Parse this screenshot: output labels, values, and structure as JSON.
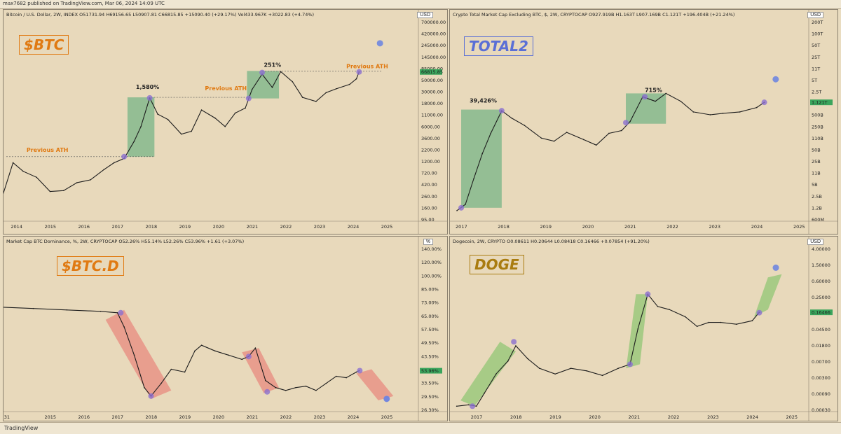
{
  "header": {
    "text": "max7682 published on TradingView.com, Mar 06, 2024 14:09 UTC"
  },
  "footer": {
    "brand": "TradingView"
  },
  "chart_data": [
    {
      "id": "btc",
      "type": "line",
      "tag": "$BTC",
      "tag_color": "#e07a12",
      "header": "Bitcoin / U.S. Dollar, 2W, INDEX  O51731.94  H69156.65  L50907.81  C66815.85  +15090.40 (+29.17%)  Vol433.967K  +3022.83 (+4.74%)",
      "currency": "USD",
      "log_scale": true,
      "x_ticks": [
        "2014",
        "2015",
        "2016",
        "2017",
        "2018",
        "2019",
        "2020",
        "2021",
        "2022",
        "2023",
        "2024",
        "2025"
      ],
      "y_ticks": [
        "700000.00",
        "420000.00",
        "245000.00",
        "145000.00",
        "85000.00",
        "50000.00",
        "30000.00",
        "18000.00",
        "11000.00",
        "6000.00",
        "3600.00",
        "2200.00",
        "1200.00",
        "720.00",
        "420.00",
        "260.00",
        "160.00",
        "95.00"
      ],
      "last_price": "66815.85",
      "x": [
        2013.5,
        2013.9,
        2014.2,
        2014.6,
        2015.0,
        2015.4,
        2015.8,
        2016.2,
        2016.6,
        2016.9,
        2017.2,
        2017.5,
        2017.7,
        2017.96,
        2018.2,
        2018.5,
        2018.9,
        2019.2,
        2019.5,
        2019.9,
        2020.2,
        2020.5,
        2020.8,
        2021.0,
        2021.3,
        2021.6,
        2021.85,
        2022.2,
        2022.5,
        2022.9,
        2023.2,
        2023.5,
        2023.9,
        2024.1,
        2024.18
      ],
      "y": [
        120,
        900,
        600,
        450,
        230,
        240,
        350,
        400,
        650,
        900,
        1100,
        2500,
        5000,
        19500,
        9000,
        7000,
        3500,
        4000,
        11000,
        7500,
        5000,
        9500,
        12000,
        29000,
        60000,
        32000,
        68000,
        42000,
        20000,
        16500,
        25000,
        30000,
        37000,
        48000,
        66815
      ],
      "annotations": [
        "1,580%",
        "Previous ATH",
        "Previous ATH",
        "251%"
      ],
      "predicted_point": {
        "x": 2024.8,
        "y": 260000
      }
    },
    {
      "id": "total2",
      "type": "line",
      "tag": "TOTAL2",
      "tag_color": "#5a6fd6",
      "header": "Crypto Total Market Cap Excluding BTC, $, 2W, CRYPTOCAP  O927.919B  H1.163T  L907.169B  C1.121T  +196.404B (+21.24%)",
      "currency": "USD",
      "log_scale": true,
      "x_ticks": [
        "2017",
        "2018",
        "2019",
        "2020",
        "2021",
        "2022",
        "2023",
        "2024",
        "2025"
      ],
      "y_ticks": [
        "200T",
        "100T",
        "50T",
        "25T",
        "11T",
        "5T",
        "2.5T",
        "1.121T",
        "500B",
        "250B",
        "110B",
        "50B",
        "25B",
        "11B",
        "5B",
        "2.5B",
        "1.2B",
        "600M"
      ],
      "last_price": "1.121T",
      "x": [
        2016.9,
        2017.1,
        2017.3,
        2017.5,
        2017.7,
        2017.96,
        2018.2,
        2018.5,
        2018.9,
        2019.2,
        2019.5,
        2019.9,
        2020.2,
        2020.5,
        2020.8,
        2021.0,
        2021.3,
        2021.6,
        2021.85,
        2022.2,
        2022.5,
        2022.9,
        2023.2,
        2023.6,
        2024.0,
        2024.18
      ],
      "y": [
        1.0,
        1.5,
        8,
        40,
        150,
        650,
        400,
        250,
        110,
        90,
        160,
        100,
        70,
        150,
        180,
        320,
        1600,
        1200,
        2000,
        1200,
        600,
        500,
        550,
        600,
        800,
        1121
      ],
      "annotations": [
        "39,426%",
        "715%"
      ],
      "predicted_point": {
        "x": 2024.45,
        "y": 5000
      }
    },
    {
      "id": "btcd",
      "type": "line",
      "tag": "$BTC.D",
      "tag_color": "#e07a12",
      "header": "Market Cap BTC Dominance, %, 2W, CRYPTOCAP  O52.26%  H55.14%  L52.26%  C53.96%  +1.61 (+3.07%)",
      "currency": "%",
      "log_scale": false,
      "x_ticks": [
        "31",
        "2015",
        "2016",
        "2017",
        "2018",
        "2019",
        "2020",
        "2021",
        "2022",
        "2023",
        "2024",
        "2025"
      ],
      "y_ticks": [
        "140.00%",
        "120.00%",
        "100.00%",
        "85.00%",
        "73.00%",
        "65.00%",
        "57.50%",
        "49.50%",
        "43.50%",
        "37.50%",
        "33.50%",
        "29.50%",
        "26.30%"
      ],
      "last_price": "53.96%",
      "x": [
        2013.5,
        2014.5,
        2015.5,
        2016.5,
        2017.0,
        2017.2,
        2017.5,
        2017.8,
        2018.0,
        2018.3,
        2018.6,
        2019.0,
        2019.3,
        2019.5,
        2019.9,
        2020.3,
        2020.7,
        2020.9,
        2021.1,
        2021.4,
        2021.7,
        2022.0,
        2022.3,
        2022.6,
        2022.9,
        2023.2,
        2023.5,
        2023.8,
        2024.1,
        2024.18
      ],
      "y": [
        99,
        98,
        97,
        96,
        95,
        85,
        65,
        42,
        36,
        45,
        55,
        53,
        68,
        72,
        68,
        65,
        62,
        64,
        70,
        47,
        42,
        40,
        42,
        43,
        40,
        45,
        50,
        49,
        53,
        53.96
      ],
      "annotations": [],
      "predicted_point": {
        "x": 2025.0,
        "y": 34
      }
    },
    {
      "id": "doge",
      "type": "line",
      "tag": "DOGE",
      "tag_color": "#a97c10",
      "header": "Dogecoin, 2W, CRYPTO  O0.08611  H0.20644  L0.08418  C0.16466  +0.07854 (+91.20%)",
      "currency": "USD",
      "log_scale": true,
      "x_ticks": [
        "2017",
        "2018",
        "2019",
        "2020",
        "2021",
        "2022",
        "2023",
        "2024",
        "2025"
      ],
      "y_ticks": [
        "4.00000",
        "1.50000",
        "0.60000",
        "0.25000",
        "0.11000",
        "0.04500",
        "0.01800",
        "0.00700",
        "0.00300",
        "0.00090",
        "0.00030"
      ],
      "last_price": "0.16466",
      "x": [
        2016.5,
        2016.8,
        2017.0,
        2017.2,
        2017.5,
        2017.8,
        2018.0,
        2018.3,
        2018.6,
        2019.0,
        2019.4,
        2019.8,
        2020.2,
        2020.6,
        2020.9,
        2021.1,
        2021.35,
        2021.6,
        2021.9,
        2022.3,
        2022.6,
        2022.9,
        2023.2,
        2023.6,
        2024.0,
        2024.18
      ],
      "y": [
        0.0002,
        0.00022,
        0.0002,
        0.0005,
        0.002,
        0.005,
        0.015,
        0.006,
        0.003,
        0.002,
        0.003,
        0.0025,
        0.0018,
        0.003,
        0.004,
        0.05,
        0.6,
        0.25,
        0.2,
        0.12,
        0.06,
        0.08,
        0.08,
        0.07,
        0.09,
        0.16466
      ],
      "annotations": [],
      "predicted_point": {
        "x": 2024.6,
        "y": 4
      }
    }
  ]
}
